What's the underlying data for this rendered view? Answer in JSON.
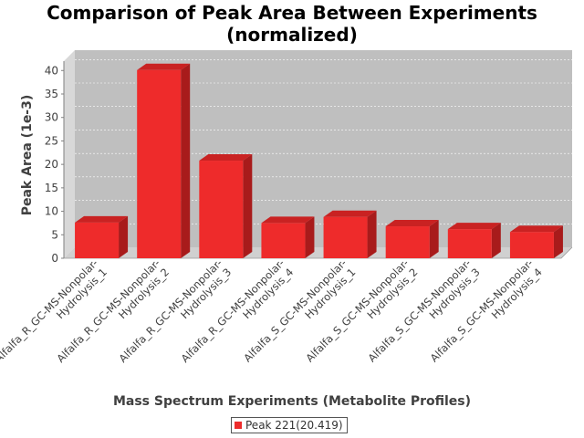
{
  "colors": {
    "bar_front": "#ee2b2b",
    "bar_top": "#c92222",
    "bar_side": "#a81b1b",
    "plot_back": "#bfbfbf",
    "plot_wall": "#d8d8d8",
    "plot_floor": "#d0d0d0",
    "grid": "#ffffff",
    "axis_text": "#404040"
  },
  "legend": {
    "label": "Peak 221(20.419)"
  },
  "chart_data": {
    "type": "bar",
    "title": "Comparison of Peak Area Between Experiments\n(normalized)",
    "xlabel": "Mass Spectrum Experiments (Metabolite Profiles)",
    "ylabel": "Peak Area (1e-3)",
    "ylim": [
      0,
      42
    ],
    "yticks": [
      0,
      5,
      10,
      15,
      20,
      25,
      30,
      35,
      40
    ],
    "grid": true,
    "legend_position": "bottom",
    "categories": [
      [
        "Alfalfa_R_GC-MS-Nonpolar-",
        "Hydrolysis_1"
      ],
      [
        "Alfalfa_R_GC-MS-Nonpolar-",
        "Hydrolysis_2"
      ],
      [
        "Alfalfa_R_GC-MS-Nonpolar-",
        "Hydrolysis_3"
      ],
      [
        "Alfalfa_R_GC-MS-Nonpolar-",
        "Hydrolysis_4"
      ],
      [
        "Alfalfa_S_GC-MS-Nonpolar-",
        "Hydrolysis_1"
      ],
      [
        "Alfalfa_S_GC-MS-Nonpolar-",
        "Hydrolysis_2"
      ],
      [
        "Alfalfa_S_GC-MS-Nonpolar-",
        "Hydrolysis_3"
      ],
      [
        "Alfalfa_S_GC-MS-Nonpolar-",
        "Hydrolysis_4"
      ]
    ],
    "series": [
      {
        "name": "Peak 221(20.419)",
        "values": [
          7.6,
          40.1,
          20.8,
          7.5,
          8.8,
          6.8,
          6.2,
          5.6
        ]
      }
    ]
  }
}
